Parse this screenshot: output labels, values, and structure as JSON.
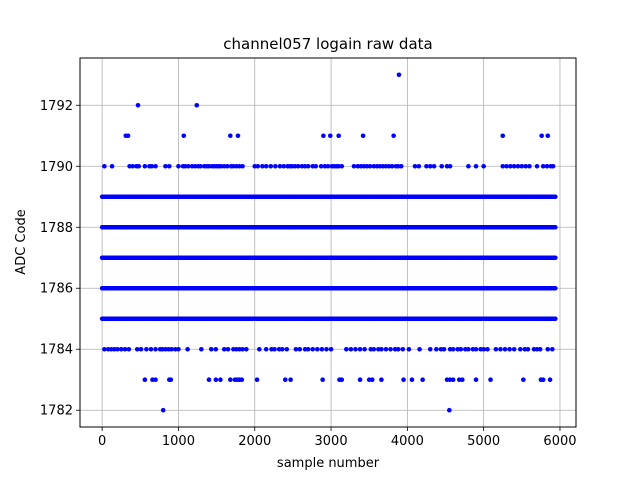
{
  "chart_data": {
    "type": "scatter",
    "title": "channel057 logain raw data",
    "xlabel": "sample number",
    "ylabel": "ADC Code",
    "xlim": [
      -290,
      6210
    ],
    "ylim": [
      1781.45,
      1793.55
    ],
    "xticks": [
      0,
      1000,
      2000,
      3000,
      4000,
      5000,
      6000
    ],
    "yticks": [
      1782,
      1784,
      1786,
      1788,
      1790,
      1792
    ],
    "grid": true,
    "color": "#0000ff",
    "sample_count": 5940,
    "dense_levels": [
      1785,
      1786,
      1787,
      1788,
      1789
    ],
    "sparse_points": {
      "1793": [
        3890
      ],
      "1792": [
        470,
        1240
      ],
      "1791": [
        310,
        340,
        1070,
        1680,
        1780,
        2900,
        2990,
        3100,
        3420,
        3820,
        5250,
        5760,
        5840
      ],
      "1790": [
        30,
        130,
        360,
        400,
        450,
        480,
        560,
        620,
        650,
        700,
        830,
        880,
        1000,
        1060,
        1090,
        1130,
        1180,
        1220,
        1260,
        1290,
        1340,
        1370,
        1400,
        1440,
        1470,
        1500,
        1530,
        1560,
        1600,
        1640,
        1690,
        1720,
        1760,
        1800,
        1840,
        2000,
        2040,
        2100,
        2150,
        2210,
        2270,
        2330,
        2380,
        2430,
        2460,
        2490,
        2530,
        2570,
        2620,
        2660,
        2700,
        2760,
        2800,
        2870,
        2920,
        2960,
        3010,
        3040,
        3070,
        3100,
        3140,
        3300,
        3350,
        3390,
        3430,
        3470,
        3510,
        3560,
        3600,
        3640,
        3680,
        3720,
        3760,
        3800,
        3850,
        3880,
        3920,
        4100,
        4150,
        4250,
        4300,
        4350,
        4450,
        4520,
        4560,
        4800,
        4900,
        5000,
        5250,
        5300,
        5350,
        5400,
        5450,
        5500,
        5550,
        5600,
        5700,
        5780,
        5830,
        5880,
        5910
      ],
      "1784": [
        30,
        80,
        120,
        160,
        200,
        250,
        300,
        350,
        460,
        510,
        580,
        640,
        700,
        760,
        790,
        830,
        870,
        910,
        960,
        1000,
        1120,
        1300,
        1430,
        1490,
        1600,
        1650,
        1720,
        1760,
        1800,
        1840,
        1890,
        2060,
        2150,
        2220,
        2260,
        2320,
        2360,
        2420,
        2540,
        2590,
        2660,
        2700,
        2760,
        2820,
        2880,
        2940,
        3000,
        3200,
        3260,
        3320,
        3380,
        3440,
        3520,
        3560,
        3620,
        3660,
        3720,
        3780,
        3840,
        3880,
        3940,
        4020,
        4160,
        4300,
        4380,
        4440,
        4480,
        4560,
        4600,
        4660,
        4700,
        4760,
        4800,
        4860,
        4900,
        4960,
        5000,
        5050,
        5160,
        5220,
        5280,
        5340,
        5400,
        5480,
        5540,
        5580,
        5660,
        5700,
        5740,
        5840,
        5900
      ],
      "1783": [
        560,
        660,
        700,
        880,
        900,
        1400,
        1490,
        1550,
        1680,
        1740,
        1770,
        1800,
        1830,
        2030,
        2400,
        2470,
        2890,
        3110,
        3140,
        3380,
        3500,
        3540,
        3660,
        3950,
        4060,
        4200,
        4520,
        4560,
        4600,
        4680,
        4720,
        4900,
        5090,
        5520,
        5750,
        5780,
        5870
      ],
      "1782": [
        800,
        4550
      ]
    }
  }
}
